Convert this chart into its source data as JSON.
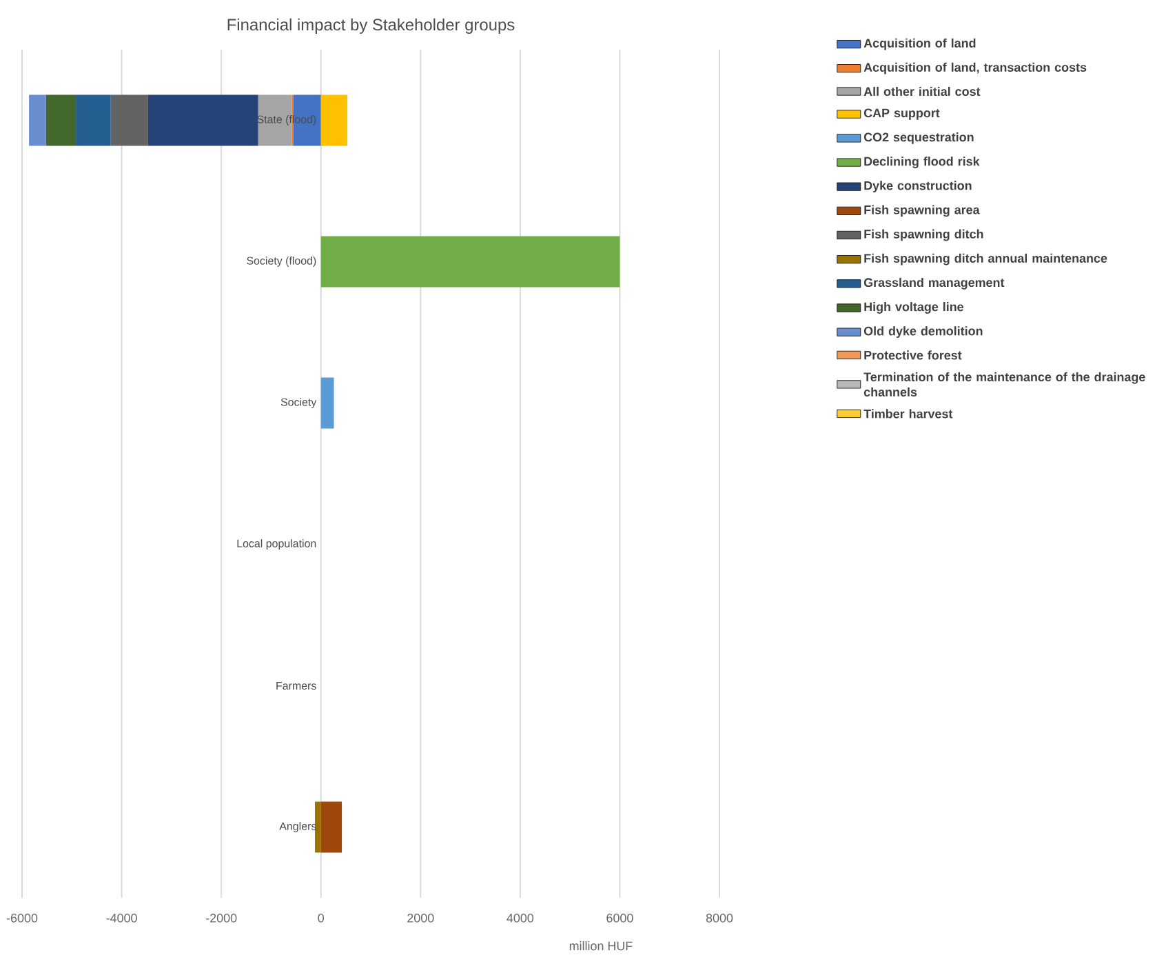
{
  "chart_data": {
    "type": "bar",
    "orientation": "horizontal",
    "stacked": true,
    "title": "Financial impact by Stakeholder groups",
    "xlabel": "million HUF",
    "categories": [
      "State (flood)",
      "Society (flood)",
      "Society",
      "Local population",
      "Farmers",
      "Anglers"
    ],
    "xlim": [
      -6000,
      8000
    ],
    "xticks": [
      -6000,
      -4000,
      -2000,
      0,
      2000,
      4000,
      6000,
      8000
    ],
    "grid": "x",
    "legend": "right",
    "series": [
      {
        "name": "Acquisition of land",
        "color": "#4472c4",
        "values": [
          -550,
          null,
          null,
          null,
          null,
          null
        ]
      },
      {
        "name": "Acquisition of land, transaction costs",
        "color": "#ed7d31",
        "values": [
          -30,
          null,
          null,
          null,
          null,
          null
        ]
      },
      {
        "name": "All other initial cost",
        "color": "#a5a5a5",
        "values": [
          -680,
          null,
          null,
          null,
          null,
          null
        ]
      },
      {
        "name": "CAP support",
        "color": "#ffc000",
        "values": [
          530,
          null,
          null,
          null,
          null,
          null
        ]
      },
      {
        "name": "CO2 sequestration",
        "color": "#5b9bd5",
        "values": [
          null,
          null,
          260,
          null,
          null,
          null
        ]
      },
      {
        "name": "Declining flood risk",
        "color": "#70ad47",
        "values": [
          null,
          6000,
          null,
          null,
          null,
          null
        ]
      },
      {
        "name": "Dyke construction",
        "color": "#264478",
        "values": [
          -2210,
          null,
          null,
          null,
          null,
          null
        ]
      },
      {
        "name": "Fish spawning area",
        "color": "#9e480e",
        "values": [
          null,
          null,
          null,
          null,
          null,
          420
        ]
      },
      {
        "name": "Fish spawning ditch",
        "color": "#636363",
        "values": [
          -750,
          null,
          null,
          null,
          null,
          null
        ]
      },
      {
        "name": "Fish spawning ditch annual maintenance",
        "color": "#997300",
        "values": [
          null,
          null,
          null,
          null,
          null,
          -120
        ]
      },
      {
        "name": "Grassland management",
        "color": "#255e91",
        "values": [
          -700,
          null,
          null,
          null,
          null,
          null
        ]
      },
      {
        "name": "High voltage line",
        "color": "#43682b",
        "values": [
          -600,
          null,
          null,
          null,
          null,
          null
        ]
      },
      {
        "name": "Old dyke demolition",
        "color": "#698ed0",
        "values": [
          -340,
          null,
          null,
          null,
          null,
          null
        ]
      },
      {
        "name": "Protective forest",
        "color": "#f1975a",
        "values": [
          null,
          null,
          null,
          null,
          null,
          null
        ]
      },
      {
        "name": "Termination of the maintenance of the drainage channels",
        "color": "#b7b7b7",
        "values": [
          null,
          null,
          null,
          null,
          null,
          null
        ]
      },
      {
        "name": "Timber harvest",
        "color": "#ffcd33",
        "values": [
          null,
          null,
          null,
          null,
          null,
          null
        ]
      }
    ]
  }
}
